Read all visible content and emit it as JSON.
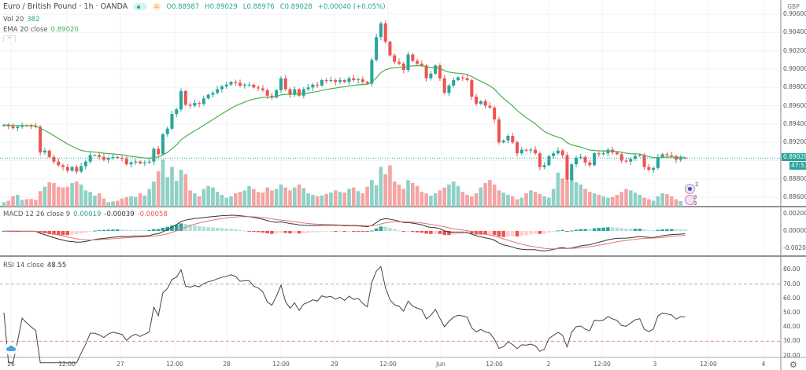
{
  "header": {
    "symbol": "Euro / British Pound · 1h · OANDA",
    "open": "O0.88987",
    "high": "H0.89029",
    "low": "L0.88976",
    "close": "C0.89028",
    "change": "+0.00040 (+0.05%)"
  },
  "indicators": {
    "vol": {
      "label": "Vol 20",
      "value": "382"
    },
    "ema": {
      "label": "EMA 20 close",
      "value": "0.89020"
    },
    "macd": {
      "label": "MACD 12 26 close 9",
      "hist": "0.00019",
      "macd": "-0.00039",
      "signal": "-0.00058"
    },
    "rsi": {
      "label": "RSI 14 close",
      "value": "48.55"
    }
  },
  "price_axis": {
    "currency": "GBP",
    "labels": [
      "0.90600",
      "0.90400",
      "0.90200",
      "0.90000",
      "0.89800",
      "0.89600",
      "0.89400",
      "0.89200",
      "0.88800",
      "0.88600"
    ],
    "current_price": "0.89028",
    "countdown": "47:57"
  },
  "macd_axis": {
    "labels": [
      "0.00200",
      "0.00000",
      "-0.00200"
    ]
  },
  "rsi_axis": {
    "labels": [
      "80.00",
      "70.00",
      "60.00",
      "50.00",
      "40.00",
      "30.00",
      "20.00"
    ]
  },
  "time_axis": {
    "labels": [
      "26",
      "12:00",
      "27",
      "12:00",
      "28",
      "12:00",
      "29",
      "12:00",
      "Jun",
      "12:00",
      "2",
      "12:00",
      "3",
      "12:00",
      "4"
    ]
  },
  "markers": {
    "events_a": "2",
    "events_b": "3 3"
  },
  "colors": {
    "up": "#26a69a",
    "down": "#ef5350",
    "ema": "#4caf50",
    "macd": "#333333",
    "signal": "#e57373"
  },
  "chart_data": {
    "type": "candlestick",
    "closes": [
      0.8939,
      0.89375,
      0.89355,
      0.8937,
      0.89385,
      0.8938,
      0.89375,
      0.8937,
      0.8909,
      0.8911,
      0.8904,
      0.8899,
      0.8895,
      0.8893,
      0.8889,
      0.8893,
      0.8888,
      0.8894,
      0.8899,
      0.8906,
      0.8906,
      0.8904,
      0.8901,
      0.8903,
      0.8904,
      0.8903,
      0.8902,
      0.8896,
      0.8898,
      0.8899,
      0.8897,
      0.8898,
      0.8899,
      0.8913,
      0.8907,
      0.8929,
      0.8935,
      0.8951,
      0.8956,
      0.8976,
      0.8961,
      0.896,
      0.8963,
      0.8962,
      0.8968,
      0.8972,
      0.8974,
      0.8978,
      0.8981,
      0.8983,
      0.8986,
      0.8985,
      0.8982,
      0.8983,
      0.8983,
      0.898,
      0.8979,
      0.8977,
      0.8971,
      0.8969,
      0.8977,
      0.899,
      0.8978,
      0.8972,
      0.8978,
      0.8971,
      0.8978,
      0.898,
      0.8983,
      0.8982,
      0.8988,
      0.8987,
      0.8988,
      0.8986,
      0.8988,
      0.8986,
      0.899,
      0.8988,
      0.8989,
      0.8986,
      0.8984,
      0.901,
      0.9035,
      0.905,
      0.903,
      0.9015,
      0.9008,
      0.9006,
      0.8999,
      0.9016,
      0.9009,
      0.9006,
      0.9004,
      0.899,
      0.8995,
      0.9004,
      0.899,
      0.8974,
      0.8982,
      0.8988,
      0.8991,
      0.899,
      0.8988,
      0.897,
      0.8962,
      0.8965,
      0.896,
      0.8958,
      0.8945,
      0.892,
      0.8922,
      0.8927,
      0.892,
      0.8908,
      0.8912,
      0.8911,
      0.8912,
      0.8908,
      0.8893,
      0.8895,
      0.8905,
      0.8908,
      0.8911,
      0.8906,
      0.8879,
      0.8896,
      0.8903,
      0.8904,
      0.8898,
      0.8895,
      0.8908,
      0.8907,
      0.8908,
      0.8912,
      0.8909,
      0.8907,
      0.89,
      0.8899,
      0.8902,
      0.8905,
      0.8906,
      0.8893,
      0.889,
      0.8892,
      0.8904,
      0.8907,
      0.8906,
      0.8905,
      0.8901,
      0.8903,
      0.89028
    ],
    "volumes": [
      300,
      400,
      700,
      800,
      450,
      500,
      520,
      450,
      1050,
      1350,
      1650,
      1600,
      1350,
      1300,
      1350,
      1600,
      1700,
      1500,
      1100,
      1000,
      750,
      900,
      550,
      300,
      350,
      400,
      550,
      650,
      700,
      650,
      900,
      750,
      1200,
      1700,
      2400,
      3200,
      2000,
      2700,
      1750,
      2500,
      2200,
      1100,
      900,
      700,
      1200,
      1400,
      1300,
      1000,
      800,
      600,
      700,
      900,
      1000,
      1100,
      1400,
      1200,
      1000,
      950,
      1300,
      1100,
      1200,
      1500,
      1300,
      1100,
      1300,
      1500,
      1250,
      900,
      800,
      700,
      750,
      850,
      950,
      1100,
      1000,
      950,
      1200,
      1300,
      1050,
      900,
      1350,
      1800,
      1450,
      2700,
      2200,
      2800,
      1700,
      1500,
      1200,
      1800,
      1600,
      1400,
      1000,
      900,
      750,
      900,
      1100,
      1300,
      1500,
      1700,
      1400,
      1000,
      800,
      700,
      900,
      1300,
      1600,
      1800,
      1500,
      1100,
      950,
      800,
      700,
      500,
      600,
      900,
      1100,
      1000,
      850,
      700,
      600,
      1200,
      2300,
      1900,
      1750,
      1900,
      1650,
      1500,
      1200,
      1000,
      900,
      800,
      700,
      600,
      650,
      800,
      1000,
      1200,
      1100,
      950,
      800,
      600,
      500,
      400,
      700,
      900,
      850,
      700,
      500,
      382
    ],
    "ylim": [
      0.8852,
      0.9068
    ],
    "overlays": [
      "EMA 20",
      "Volume"
    ],
    "panes": [
      "MACD 12 26 close 9",
      "RSI 14 close"
    ]
  }
}
